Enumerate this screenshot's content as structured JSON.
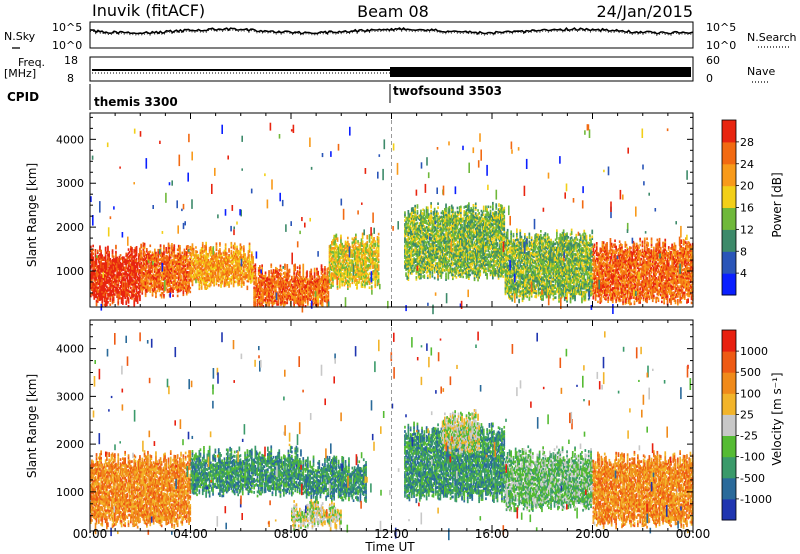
{
  "header": {
    "station": "Inuvik (fitACF)",
    "beam": "Beam 08",
    "date": "24/Jan/2015"
  },
  "noise_panel": {
    "left_label": "N.Sky",
    "left_ticks": [
      "10^5",
      "10^0"
    ],
    "right_ticks": [
      "10^5",
      "10^0"
    ],
    "right_label": "N.Search"
  },
  "freq_panel": {
    "left_label_1": "Freq.",
    "left_label_2": "[MHz]",
    "left_ticks": [
      "18",
      "8"
    ],
    "right_ticks": [
      "60",
      "0"
    ],
    "right_label": "Nave"
  },
  "cpid": {
    "label": "CPID",
    "segments": [
      "themis 3300",
      "twofsound 3503"
    ]
  },
  "time_axis": {
    "ticks": [
      "00:00",
      "04:00",
      "08:00",
      "12:00",
      "16:00",
      "20:00",
      "00:00"
    ],
    "label": "Time UT"
  },
  "power_colorbar": {
    "title": "Power [dB]",
    "ticks": [
      "4",
      "8",
      "12",
      "16",
      "20",
      "24",
      "28"
    ],
    "colors": [
      "#0a1fff",
      "#2a55b8",
      "#3d8a6a",
      "#6fb83a",
      "#f2cf18",
      "#f89a1a",
      "#f26a12",
      "#e82510"
    ]
  },
  "velocity_colorbar": {
    "title": "Velocity [m s⁻¹]",
    "ticks": [
      "1000",
      "500",
      "100",
      "25",
      "-25",
      "-100",
      "-500",
      "-1000"
    ],
    "colors": [
      "#1f35b0",
      "#2a6a9a",
      "#3a9a6a",
      "#55bb33",
      "#c8c8c8",
      "#f2b42a",
      "#f08a1a",
      "#ee5a14",
      "#e82010"
    ]
  },
  "chart_data": [
    {
      "type": "line",
      "title": "Inuvik (fitACF)",
      "series": [
        {
          "name": "N.Sky"
        },
        {
          "name": "N.Search"
        }
      ],
      "ylim_log10": [
        0,
        5
      ]
    },
    {
      "type": "line",
      "series": [
        {
          "name": "Freq."
        },
        {
          "name": "Nave"
        }
      ],
      "left_ylim": [
        8,
        18
      ],
      "right_ylim": [
        0,
        60
      ],
      "freq_mhz_approx": 11
    },
    {
      "type": "heatmap",
      "quantity": "Power [dB]",
      "xlabel": "Time UT",
      "ylabel": "Slant Range [km]",
      "xlim_hours": [
        0,
        24
      ],
      "ylim_km": [
        180,
        4600
      ],
      "y_ticks": [
        1000,
        2000,
        3000,
        4000
      ],
      "color_range_db": [
        0,
        30
      ],
      "regions": [
        {
          "t0": 0.0,
          "t1": 2.0,
          "r0": 300,
          "r1": 1450,
          "level": 7
        },
        {
          "t0": 2.0,
          "t1": 4.0,
          "r0": 500,
          "r1": 1500,
          "level": 6
        },
        {
          "t0": 4.0,
          "t1": 6.5,
          "r0": 700,
          "r1": 1500,
          "level": 5
        },
        {
          "t0": 6.5,
          "t1": 9.5,
          "r0": 250,
          "r1": 1000,
          "level": 6
        },
        {
          "t0": 9.5,
          "t1": 11.5,
          "r0": 700,
          "r1": 1700,
          "level": 4
        },
        {
          "t0": 12.5,
          "t1": 16.5,
          "r0": 900,
          "r1": 2400,
          "level": 3
        },
        {
          "t0": 16.5,
          "t1": 20.0,
          "r0": 400,
          "r1": 1800,
          "level": 3
        },
        {
          "t0": 20.0,
          "t1": 24.0,
          "r0": 350,
          "r1": 1600,
          "level": 6
        }
      ]
    },
    {
      "type": "heatmap",
      "quantity": "Velocity [m s⁻¹]",
      "xlabel": "Time UT",
      "ylabel": "Slant Range [km]",
      "xlim_hours": [
        0,
        24
      ],
      "ylim_km": [
        180,
        4600
      ],
      "y_ticks": [
        1000,
        2000,
        3000,
        4000
      ],
      "color_range_m_s": [
        -1000,
        1000
      ],
      "regions": [
        {
          "t0": 0.0,
          "t1": 4.0,
          "r0": 350,
          "r1": 1700,
          "level": 6
        },
        {
          "t0": 4.0,
          "t1": 8.5,
          "r0": 1000,
          "r1": 1800,
          "level": 2
        },
        {
          "t0": 8.5,
          "t1": 11.0,
          "r0": 900,
          "r1": 1600,
          "level": 2
        },
        {
          "t0": 8.0,
          "t1": 10.0,
          "r0": 300,
          "r1": 700,
          "level": 4
        },
        {
          "t0": 12.5,
          "t1": 16.5,
          "r0": 900,
          "r1": 2300,
          "level": 2
        },
        {
          "t0": 14.0,
          "t1": 15.5,
          "r0": 1900,
          "r1": 2600,
          "level": 4
        },
        {
          "t0": 16.5,
          "t1": 20.0,
          "r0": 700,
          "r1": 1800,
          "level": 3
        },
        {
          "t0": 20.0,
          "t1": 24.0,
          "r0": 350,
          "r1": 1700,
          "level": 6
        }
      ]
    }
  ]
}
